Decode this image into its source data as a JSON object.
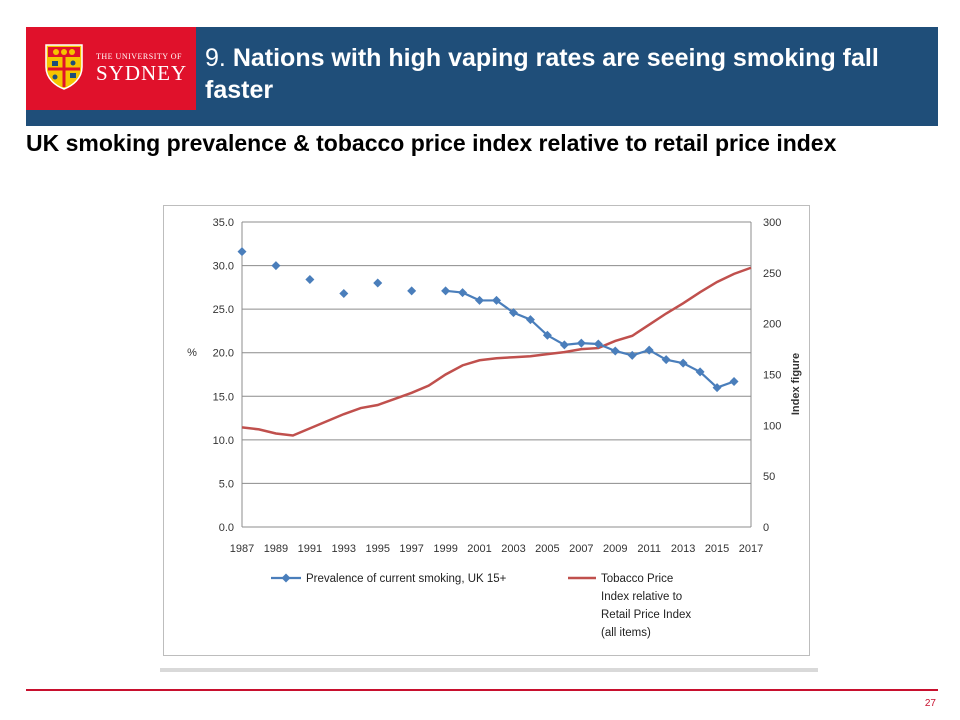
{
  "header": {
    "logo_small": "THE UNIVERSITY OF",
    "logo_big": "SYDNEY",
    "title_number": "9.",
    "title_text": "Nations with high vaping rates are seeing smoking fall faster",
    "bar_color": "#1f4e79",
    "logo_color": "#e0112b"
  },
  "subtitle": "UK smoking prevalence & tobacco price index relative to retail price index",
  "page_number": "27",
  "chart_data": {
    "type": "line",
    "title": "",
    "xlabel": "",
    "ylabel": "%",
    "y2label": "Index figure",
    "xlim": [
      1987,
      2017
    ],
    "ylim": [
      0,
      35
    ],
    "y2lim": [
      0,
      300
    ],
    "grid": true,
    "legend_position": "bottom",
    "x_ticks": [
      "1987",
      "1989",
      "1991",
      "1993",
      "1995",
      "1997",
      "1999",
      "2001",
      "2003",
      "2005",
      "2007",
      "2009",
      "2011",
      "2013",
      "2015",
      "2017"
    ],
    "y_ticks": [
      "0.0",
      "5.0",
      "10.0",
      "15.0",
      "20.0",
      "25.0",
      "30.0",
      "35.0"
    ],
    "y2_ticks": [
      "0",
      "50",
      "100",
      "150",
      "200",
      "250",
      "300"
    ],
    "series": [
      {
        "name": "Prevalence of current smoking, UK 15+",
        "axis": "left",
        "color": "#4a7ebb",
        "marker": "diamond",
        "segments": [
          {
            "x": [
              1987
            ],
            "y": [
              31.6
            ]
          },
          {
            "x": [
              1989
            ],
            "y": [
              30.0
            ]
          },
          {
            "x": [
              1991
            ],
            "y": [
              28.4
            ]
          },
          {
            "x": [
              1993
            ],
            "y": [
              26.8
            ]
          },
          {
            "x": [
              1995
            ],
            "y": [
              28.0
            ]
          },
          {
            "x": [
              1997
            ],
            "y": [
              27.1
            ]
          },
          {
            "x": [
              1999,
              2000,
              2001,
              2002,
              2003,
              2004,
              2005,
              2006,
              2007,
              2008,
              2009,
              2010,
              2011,
              2012,
              2013,
              2014,
              2015,
              2016
            ],
            "y": [
              27.1,
              26.9,
              26.0,
              26.0,
              24.6,
              23.8,
              22.0,
              20.9,
              21.1,
              21.0,
              20.2,
              19.7,
              20.3,
              19.2,
              18.8,
              17.8,
              16.0,
              16.7
            ]
          }
        ]
      },
      {
        "name": "Tobacco Price Index relative to Retail Price Index (all items)",
        "axis": "right",
        "color": "#c0504d",
        "x": [
          1987,
          1988,
          1989,
          1990,
          1991,
          1992,
          1993,
          1994,
          1995,
          1996,
          1997,
          1998,
          1999,
          2000,
          2001,
          2002,
          2003,
          2004,
          2005,
          2006,
          2007,
          2008,
          2009,
          2010,
          2011,
          2012,
          2013,
          2014,
          2015,
          2016,
          2017
        ],
        "y": [
          98,
          96,
          92,
          90,
          97,
          104,
          111,
          117,
          120,
          126,
          132,
          139,
          150,
          159,
          164,
          166,
          167,
          168,
          170,
          172,
          175,
          176,
          183,
          188,
          199,
          210,
          220,
          231,
          241,
          249,
          255
        ]
      }
    ]
  }
}
